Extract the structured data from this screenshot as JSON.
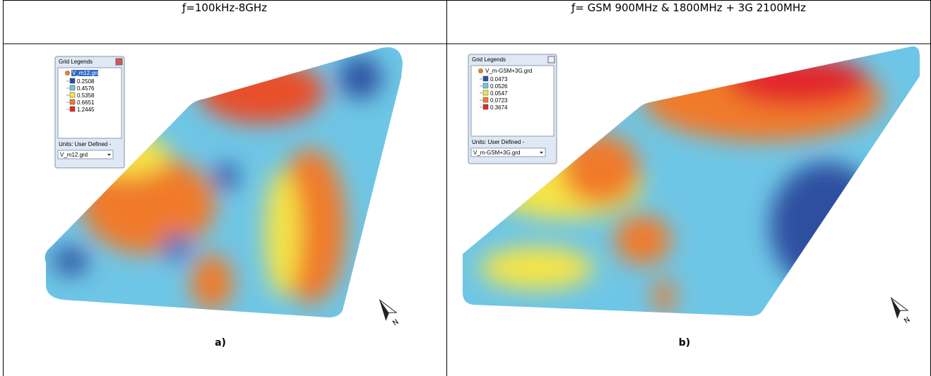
{
  "panels": [
    {
      "header": "ƒ=100kHz-8GHz",
      "legend": {
        "title": "Grid Legends",
        "file": "V_m12.grd",
        "entries": [
          {
            "value": 0.2508,
            "color": "#2e4fa0"
          },
          {
            "value": 0.4576,
            "color": "#6ec6e6"
          },
          {
            "value": 0.5358,
            "color": "#f5e447"
          },
          {
            "value": 0.6651,
            "color": "#f07a2a"
          },
          {
            "value": 1.2445,
            "color": "#e3262b"
          }
        ],
        "units": "Units: User Defined -",
        "selected": "V_m12.grd"
      },
      "north": "N",
      "caption": "a)"
    },
    {
      "header": "ƒ= GSM 900MHz & 1800MHz + 3G 2100MHz",
      "legend": {
        "title": "Grid Legends",
        "file": "V_m-GSM+3G.grd",
        "entries": [
          {
            "value": 0.0473,
            "color": "#2e4fa0"
          },
          {
            "value": 0.0526,
            "color": "#6ec6e6"
          },
          {
            "value": 0.0547,
            "color": "#f5e447"
          },
          {
            "value": 0.0723,
            "color": "#f07a2a"
          },
          {
            "value": 0.3674,
            "color": "#e3262b"
          }
        ],
        "units": "Units: User Defined -",
        "selected": "V_m-GSM+3G.grd"
      },
      "north": "N",
      "caption": "b)"
    }
  ]
}
